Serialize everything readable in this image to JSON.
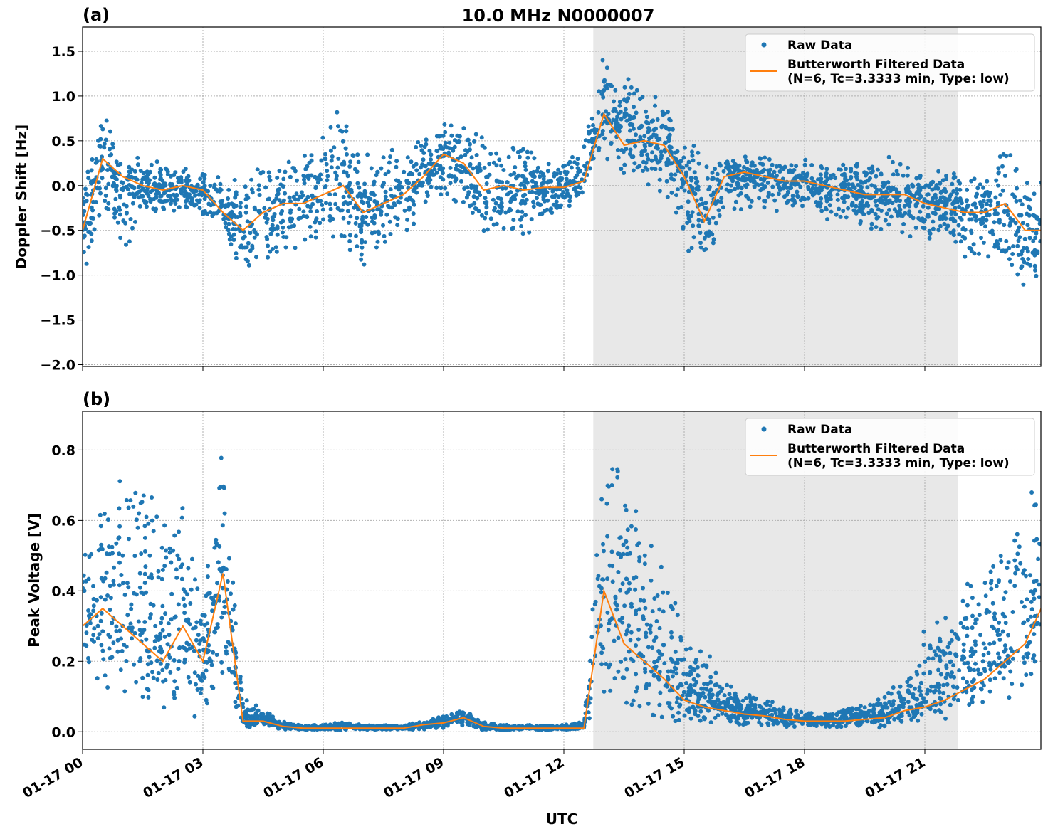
{
  "figure_title": "10.0 MHz N0000007",
  "x_label": "UTC",
  "x_ticks": [
    "01-17 00",
    "01-17 03",
    "01-17 06",
    "01-17 09",
    "01-17 12",
    "01-17 15",
    "01-17 18",
    "01-17 21"
  ],
  "colors": {
    "raw": "#1f77b4",
    "filtered": "#ff7f0e",
    "shade": "#e8e8e8"
  },
  "chart_data": [
    {
      "type": "scatter",
      "panel_label": "(a)",
      "ylabel": "Doppler Shift [Hz]",
      "xlim": [
        "01-17 00:00",
        "01-17 23:54"
      ],
      "ylim": [
        -2.02,
        1.77
      ],
      "y_ticks": [
        "1.5",
        "1.0",
        "0.5",
        "0.0",
        "−0.5",
        "−1.0",
        "−1.5",
        "−2.0"
      ],
      "y_tick_values": [
        1.5,
        1.0,
        0.5,
        0.0,
        -0.5,
        -1.0,
        -1.5,
        -2.0
      ],
      "grid": true,
      "legend_placement": "upper-right",
      "legend": [
        "Raw Data",
        "Butterworth Filtered Data",
        "(N=6, Tc=3.3333 min, Type: low)"
      ],
      "shaded_span": [
        "01-17 12:44",
        "01-17 21:50"
      ],
      "x": [
        "00:00",
        "00:30",
        "01:00",
        "01:30",
        "02:00",
        "02:30",
        "03:00",
        "03:30",
        "04:00",
        "04:30",
        "05:00",
        "05:30",
        "06:00",
        "06:30",
        "07:00",
        "07:30",
        "08:00",
        "08:30",
        "09:00",
        "09:30",
        "10:00",
        "10:30",
        "11:00",
        "11:30",
        "12:00",
        "12:30",
        "13:00",
        "13:30",
        "14:00",
        "14:30",
        "15:00",
        "15:30",
        "16:00",
        "16:30",
        "17:00",
        "17:30",
        "18:00",
        "18:30",
        "19:00",
        "19:30",
        "20:00",
        "20:30",
        "21:00",
        "21:30",
        "22:00",
        "22:30",
        "23:00",
        "23:30",
        "23:54"
      ],
      "filtered": [
        -0.5,
        0.3,
        0.1,
        0.0,
        -0.05,
        0.0,
        -0.05,
        -0.3,
        -0.5,
        -0.3,
        -0.2,
        -0.2,
        -0.1,
        0.0,
        -0.3,
        -0.2,
        -0.1,
        0.1,
        0.35,
        0.25,
        -0.05,
        0.0,
        -0.05,
        -0.02,
        -0.02,
        0.05,
        0.8,
        0.45,
        0.5,
        0.45,
        0.1,
        -0.4,
        0.1,
        0.15,
        0.1,
        0.05,
        0.05,
        0.0,
        -0.05,
        -0.1,
        -0.1,
        -0.1,
        -0.2,
        -0.25,
        -0.3,
        -0.3,
        -0.2,
        -0.5,
        -0.5
      ],
      "raw_high": [
        0.1,
        0.9,
        0.4,
        0.3,
        0.3,
        0.2,
        0.2,
        0.1,
        0.2,
        0.3,
        0.3,
        0.4,
        0.7,
        0.9,
        0.4,
        0.4,
        0.5,
        0.6,
        0.8,
        0.8,
        0.6,
        0.5,
        0.5,
        0.3,
        0.3,
        0.5,
        1.5,
        1.4,
        1.1,
        1.0,
        0.6,
        0.5,
        0.4,
        0.4,
        0.35,
        0.35,
        0.3,
        0.3,
        0.3,
        0.3,
        0.35,
        0.3,
        0.2,
        0.2,
        0.1,
        0.1,
        0.6,
        0.1,
        0.1
      ],
      "raw_low": [
        -1.1,
        -0.3,
        -1.0,
        -0.3,
        -0.3,
        -0.3,
        -0.4,
        -0.6,
        -1.1,
        -0.9,
        -0.8,
        -0.8,
        -0.7,
        -0.8,
        -0.9,
        -0.8,
        -0.7,
        -0.4,
        -0.2,
        -0.3,
        -0.6,
        -0.6,
        -0.6,
        -0.4,
        -0.3,
        -0.2,
        0.3,
        0.1,
        0.0,
        -0.1,
        -0.6,
        -1.2,
        -0.3,
        -0.3,
        -0.3,
        -0.3,
        -0.3,
        -0.4,
        -0.4,
        -0.5,
        -0.6,
        -0.6,
        -0.6,
        -0.6,
        -0.8,
        -0.8,
        -0.9,
        -1.4,
        -1.1
      ]
    },
    {
      "type": "scatter",
      "panel_label": "(b)",
      "ylabel": "Peak Voltage [V]",
      "xlim": [
        "01-17 00:00",
        "01-17 23:54"
      ],
      "ylim": [
        -0.05,
        0.91
      ],
      "y_ticks": [
        "0.8",
        "0.6",
        "0.4",
        "0.2",
        "0.0"
      ],
      "y_tick_values": [
        0.8,
        0.6,
        0.4,
        0.2,
        0.0
      ],
      "grid": true,
      "legend_placement": "upper-right",
      "legend": [
        "Raw Data",
        "Butterworth Filtered Data",
        "(N=6, Tc=3.3333 min, Type: low)"
      ],
      "shaded_span": [
        "01-17 12:44",
        "01-17 21:50"
      ],
      "x": [
        "00:00",
        "00:30",
        "01:00",
        "01:30",
        "02:00",
        "02:30",
        "03:00",
        "03:30",
        "04:00",
        "04:30",
        "05:00",
        "05:30",
        "06:00",
        "06:30",
        "07:00",
        "07:30",
        "08:00",
        "08:30",
        "09:00",
        "09:30",
        "10:00",
        "10:30",
        "11:00",
        "11:30",
        "12:00",
        "12:30",
        "13:00",
        "13:30",
        "14:00",
        "14:30",
        "15:00",
        "15:30",
        "16:00",
        "16:30",
        "17:00",
        "17:30",
        "18:00",
        "18:30",
        "19:00",
        "19:30",
        "20:00",
        "20:30",
        "21:00",
        "21:30",
        "22:00",
        "22:30",
        "23:00",
        "23:30",
        "23:54"
      ],
      "filtered": [
        0.3,
        0.35,
        0.3,
        0.25,
        0.2,
        0.3,
        0.2,
        0.45,
        0.03,
        0.03,
        0.015,
        0.01,
        0.01,
        0.01,
        0.01,
        0.01,
        0.01,
        0.02,
        0.025,
        0.04,
        0.015,
        0.01,
        0.01,
        0.01,
        0.01,
        0.01,
        0.4,
        0.25,
        0.2,
        0.15,
        0.09,
        0.07,
        0.06,
        0.05,
        0.045,
        0.035,
        0.03,
        0.03,
        0.03,
        0.035,
        0.04,
        0.06,
        0.07,
        0.09,
        0.12,
        0.15,
        0.2,
        0.25,
        0.35
      ],
      "raw_high": [
        0.55,
        0.7,
        0.75,
        0.8,
        0.6,
        0.8,
        0.35,
        0.85,
        0.1,
        0.07,
        0.03,
        0.02,
        0.02,
        0.03,
        0.02,
        0.02,
        0.02,
        0.03,
        0.05,
        0.07,
        0.03,
        0.02,
        0.02,
        0.02,
        0.02,
        0.03,
        0.87,
        0.8,
        0.6,
        0.5,
        0.3,
        0.25,
        0.15,
        0.12,
        0.1,
        0.08,
        0.06,
        0.06,
        0.07,
        0.08,
        0.12,
        0.15,
        0.3,
        0.35,
        0.45,
        0.55,
        0.6,
        0.7,
        0.8
      ],
      "raw_low": [
        0.15,
        0.1,
        0.1,
        0.05,
        0.05,
        0.05,
        0.03,
        0.05,
        0.01,
        0.01,
        0.005,
        0.005,
        0.005,
        0.005,
        0.005,
        0.005,
        0.005,
        0.005,
        0.01,
        0.015,
        0.005,
        0.005,
        0.005,
        0.005,
        0.005,
        0.005,
        0.05,
        0.05,
        0.04,
        0.03,
        0.02,
        0.02,
        0.015,
        0.01,
        0.01,
        0.01,
        0.01,
        0.01,
        0.01,
        0.01,
        0.01,
        0.02,
        0.03,
        0.03,
        0.04,
        0.05,
        0.06,
        0.08,
        0.1
      ]
    }
  ]
}
